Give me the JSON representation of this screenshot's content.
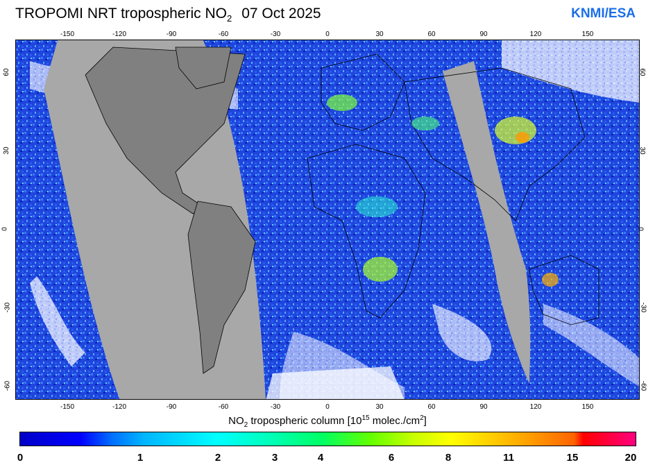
{
  "title": {
    "prefix": "TROPOMI  NRT tropospheric NO",
    "subscript": "2",
    "date": "07 Oct 2025"
  },
  "brand": "KNMI/ESA",
  "map": {
    "projection": "plate-carree",
    "longitude_ticks": [
      "-150",
      "-120",
      "-90",
      "-60",
      "-30",
      "0",
      "30",
      "60",
      "90",
      "120",
      "150"
    ],
    "latitude_ticks": [
      "60",
      "30",
      "0",
      "-30",
      "-60"
    ],
    "no_data_color": "#a8a8a8",
    "land_overlay_color": "#808080",
    "ocean_background_color": "#1a3bd6"
  },
  "colorbar": {
    "caption_prefix": "NO",
    "caption_sub": "2",
    "caption_middle": " tropospheric column [10",
    "caption_sup": "15",
    "caption_units": " molec./cm",
    "caption_sup2": "2",
    "caption_end": "]",
    "labels": [
      "0",
      "1",
      "2",
      "3",
      "4",
      "6",
      "8",
      "11",
      "15",
      "20"
    ]
  }
}
